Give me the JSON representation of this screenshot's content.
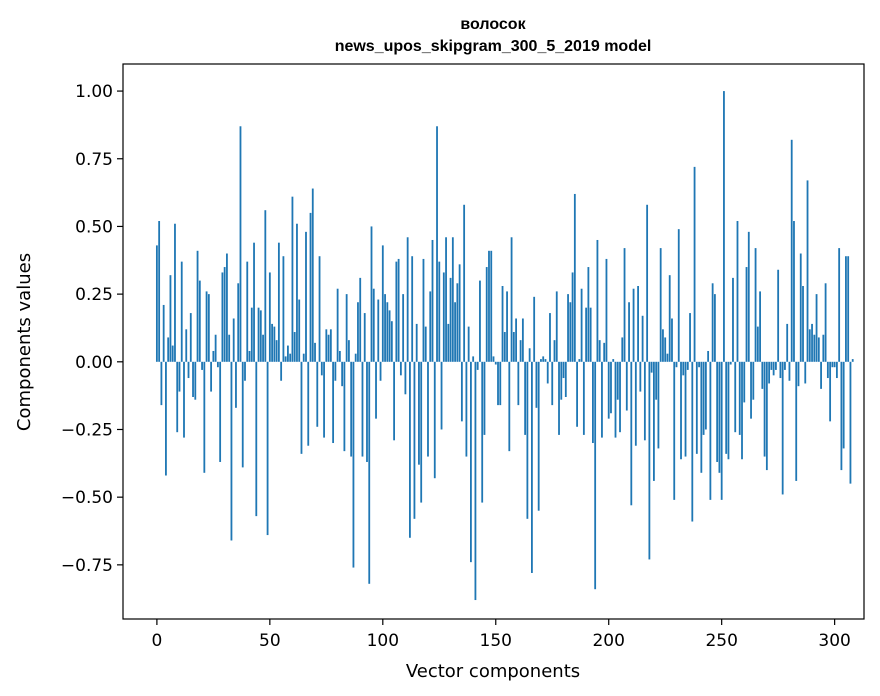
{
  "chart_data": {
    "type": "bar",
    "title": "волосок",
    "subtitle": "news_upos_skipgram_300_5_2019 model",
    "xlabel": "Vector components",
    "ylabel": "Components values",
    "xlim": [
      -15,
      313
    ],
    "ylim": [
      -0.95,
      1.1
    ],
    "xticks": [
      0,
      50,
      100,
      150,
      200,
      250,
      300
    ],
    "xtick_labels": [
      "0",
      "50",
      "100",
      "150",
      "200",
      "250",
      "300"
    ],
    "yticks": [
      -0.75,
      -0.5,
      -0.25,
      0.0,
      0.25,
      0.5,
      0.75,
      1.0
    ],
    "ytick_labels": [
      "−0.75",
      "−0.50",
      "−0.25",
      "0.00",
      "0.25",
      "0.50",
      "0.75",
      "1.00"
    ],
    "bar_color": "#1f77b4",
    "grid": false,
    "series": [
      {
        "values": [
          0.43,
          0.52,
          -0.16,
          0.21,
          -0.42,
          0.09,
          0.32,
          0.06,
          0.51,
          -0.26,
          -0.11,
          0.37,
          -0.28,
          0.12,
          -0.06,
          0.18,
          -0.13,
          -0.14,
          0.41,
          0.3,
          -0.03,
          -0.41,
          0.26,
          0.25,
          -0.11,
          0.04,
          0.1,
          -0.02,
          -0.37,
          0.33,
          0.35,
          0.4,
          0.1,
          -0.66,
          0.16,
          -0.17,
          0.29,
          0.87,
          -0.39,
          -0.07,
          0.37,
          0.04,
          0.2,
          0.44,
          -0.57,
          0.2,
          0.19,
          0.1,
          0.56,
          -0.64,
          0.33,
          0.14,
          0.13,
          0.08,
          0.44,
          -0.07,
          0.39,
          0.02,
          0.06,
          0.03,
          0.61,
          0.11,
          0.51,
          0.23,
          -0.34,
          0.03,
          0.48,
          -0.31,
          0.55,
          0.64,
          0.07,
          -0.24,
          0.39,
          -0.05,
          -0.28,
          0.12,
          0.1,
          0.12,
          -0.3,
          -0.07,
          0.27,
          0.04,
          -0.09,
          -0.33,
          0.25,
          0.08,
          -0.35,
          -0.76,
          0.03,
          0.22,
          0.31,
          -0.35,
          0.18,
          -0.37,
          -0.82,
          0.5,
          0.27,
          -0.21,
          0.23,
          -0.07,
          0.43,
          0.25,
          0.22,
          0.19,
          0.15,
          -0.29,
          0.37,
          0.38,
          -0.05,
          0.25,
          -0.12,
          0.46,
          -0.65,
          0.39,
          -0.58,
          0.14,
          -0.38,
          -0.52,
          0.38,
          0.13,
          -0.35,
          0.26,
          0.45,
          -0.43,
          0.87,
          0.37,
          -0.25,
          0.33,
          0.46,
          0.14,
          0.31,
          0.46,
          0.22,
          0.29,
          0.36,
          -0.22,
          0.58,
          -0.35,
          0.13,
          -0.74,
          0.02,
          -0.88,
          -0.03,
          0.3,
          -0.52,
          -0.27,
          0.35,
          0.41,
          0.41,
          0.02,
          -0.01,
          -0.16,
          -0.16,
          0.28,
          0.11,
          0.26,
          -0.33,
          0.46,
          0.11,
          0.16,
          -0.16,
          0.08,
          0.16,
          -0.27,
          -0.58,
          0.05,
          -0.78,
          0.24,
          -0.17,
          -0.55,
          0.01,
          0.02,
          0.01,
          -0.08,
          0.18,
          -0.16,
          0.08,
          0.26,
          -0.27,
          -0.14,
          -0.06,
          -0.13,
          0.25,
          0.22,
          0.33,
          0.62,
          -0.24,
          0.01,
          0.27,
          -0.27,
          0.2,
          0.35,
          0.2,
          -0.3,
          -0.84,
          0.45,
          0.08,
          -0.28,
          0.07,
          0.38,
          -0.21,
          -0.19,
          0.01,
          -0.28,
          -0.14,
          -0.26,
          0.09,
          0.42,
          -0.18,
          0.22,
          -0.53,
          0.27,
          -0.31,
          0.28,
          -0.11,
          0.17,
          -0.29,
          0.58,
          -0.73,
          -0.04,
          -0.44,
          -0.14,
          -0.32,
          0.42,
          0.12,
          0.09,
          0.03,
          0.32,
          0.16,
          -0.51,
          -0.02,
          0.49,
          -0.36,
          -0.05,
          -0.35,
          -0.03,
          0.18,
          -0.59,
          0.72,
          -0.34,
          -0.02,
          -0.41,
          -0.27,
          -0.25,
          0.04,
          -0.51,
          0.29,
          0.25,
          -0.37,
          -0.41,
          -0.51,
          1.0,
          -0.34,
          -0.36,
          -0.01,
          0.31,
          -0.26,
          0.52,
          -0.27,
          -0.36,
          -0.15,
          0.35,
          0.48,
          -0.21,
          -0.14,
          0.42,
          0.13,
          0.26,
          -0.1,
          -0.35,
          -0.4,
          -0.08,
          -0.03,
          -0.05,
          -0.03,
          0.34,
          -0.06,
          -0.49,
          -0.03,
          0.14,
          -0.07,
          0.82,
          0.52,
          -0.44,
          -0.09,
          0.4,
          0.28,
          -0.08,
          0.67,
          0.12,
          0.14,
          0.1,
          0.25,
          0.09,
          -0.1,
          0.1,
          0.29,
          -0.06,
          -0.22,
          -0.02,
          -0.02,
          -0.06,
          0.42,
          -0.4,
          -0.32,
          0.39,
          0.39,
          -0.45,
          0.01
        ]
      }
    ]
  }
}
